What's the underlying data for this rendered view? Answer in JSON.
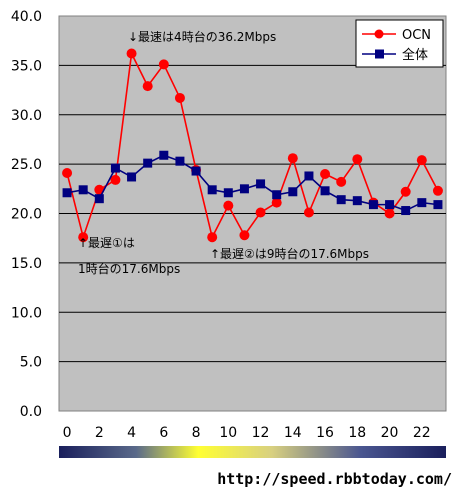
{
  "chart_data": {
    "type": "line",
    "title": "",
    "xlabel": "",
    "ylabel": "",
    "ylim": [
      0,
      40
    ],
    "xlim": [
      -0.5,
      23.5
    ],
    "y_ticks": [
      "0.0",
      "5.0",
      "10.0",
      "15.0",
      "20.0",
      "25.0",
      "30.0",
      "35.0",
      "40.0"
    ],
    "x_ticks": [
      0,
      2,
      4,
      6,
      8,
      10,
      12,
      14,
      16,
      18,
      20,
      22
    ],
    "x": [
      0,
      1,
      2,
      3,
      4,
      5,
      6,
      7,
      8,
      9,
      10,
      11,
      12,
      13,
      14,
      15,
      16,
      17,
      18,
      19,
      20,
      21,
      22,
      23
    ],
    "series": [
      {
        "name": "OCN",
        "color": "#ff0000",
        "marker": "circle",
        "values": [
          24.1,
          17.6,
          22.4,
          23.4,
          36.2,
          32.9,
          35.1,
          31.7,
          24.4,
          17.6,
          20.8,
          17.8,
          20.1,
          21.1,
          25.6,
          20.1,
          24.0,
          23.2,
          25.5,
          21.1,
          20.0,
          22.2,
          25.4,
          22.3
        ]
      },
      {
        "name": "全体",
        "color": "#000080",
        "marker": "square",
        "values": [
          22.1,
          22.4,
          21.5,
          24.6,
          23.7,
          25.1,
          25.9,
          25.3,
          24.3,
          22.4,
          22.1,
          22.5,
          23.0,
          21.9,
          22.2,
          23.8,
          22.3,
          21.4,
          21.3,
          20.9,
          20.9,
          20.3,
          21.1,
          20.9
        ]
      }
    ],
    "grid": true,
    "legend_position": "top-right",
    "annotations": [
      {
        "text": "↓最速は4時台の36.2Mbps"
      },
      {
        "text": "↑最遅①は"
      },
      {
        "text": "1時台の17.6Mbps"
      },
      {
        "text": "↑最遅②は9時台の17.6Mbps"
      }
    ]
  },
  "colors": {
    "plot_background": "#c0c0c0",
    "grid": "#000000",
    "time_bar_gradient": [
      "#1a1f5c",
      "#5a6a8a",
      "#ffff33",
      "#d8d080",
      "#4a5690",
      "#1a1f5c"
    ]
  },
  "source_label": "http://speed.rbbtoday.com/"
}
